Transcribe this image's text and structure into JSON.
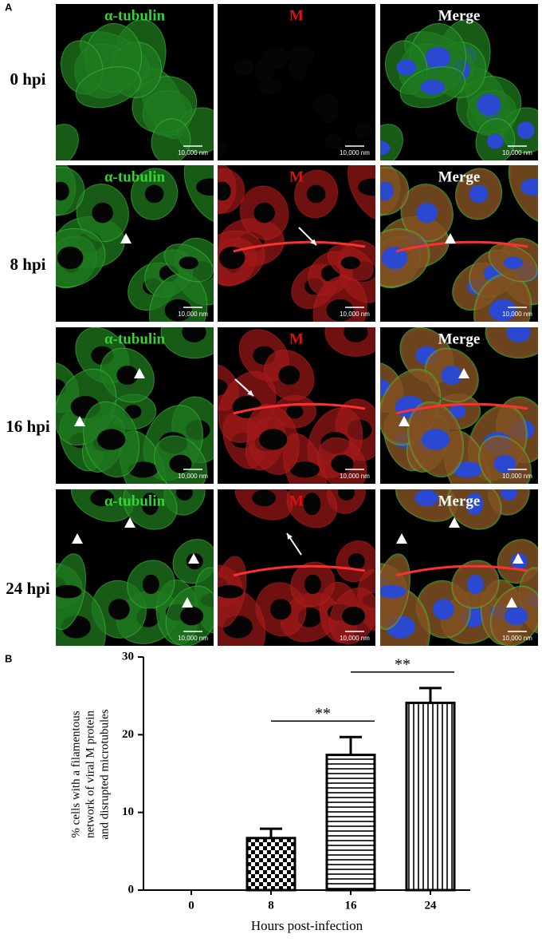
{
  "panel_a": {
    "label": "A",
    "rows": [
      {
        "label": "0 hpi",
        "panels": [
          {
            "title": "α-tubulin",
            "scale_bar": "10,000 nm"
          },
          {
            "title": "M",
            "scale_bar": "10,000 nm"
          },
          {
            "title": "Merge",
            "scale_bar": "10,000 nm"
          }
        ]
      },
      {
        "label": "8 hpi",
        "panels": [
          {
            "title": "α-tubulin",
            "scale_bar": "10,000 nm"
          },
          {
            "title": "M",
            "scale_bar": "10,000 nm"
          },
          {
            "title": "Merge",
            "scale_bar": "10,000 nm"
          }
        ]
      },
      {
        "label": "16 hpi",
        "panels": [
          {
            "title": "α-tubulin",
            "scale_bar": "10,000 nm"
          },
          {
            "title": "M",
            "scale_bar": "10,000 nm"
          },
          {
            "title": "Merge",
            "scale_bar": "10,000 nm"
          }
        ]
      },
      {
        "label": "24 hpi",
        "panels": [
          {
            "title": "α-tubulin",
            "scale_bar": "10,000 nm"
          },
          {
            "title": "M",
            "scale_bar": "10,000 nm"
          },
          {
            "title": "Merge",
            "scale_bar": "10,000 nm"
          }
        ]
      }
    ]
  },
  "chart_data": {
    "type": "bar",
    "panel_label": "B",
    "categories": [
      "0",
      "8",
      "16",
      "24"
    ],
    "values": [
      0,
      6.7,
      17.4,
      24.1
    ],
    "errors": [
      0,
      1.2,
      2.3,
      1.9
    ],
    "patterns": [
      "none",
      "checker",
      "horizontal",
      "vertical"
    ],
    "color": "#000000",
    "ylim": [
      0,
      30
    ],
    "yticks": [
      0,
      10,
      20,
      30
    ],
    "ylabel": [
      "% cells with a filamentous",
      "network of viral M protein",
      "and disrupted microtubules"
    ],
    "xlabel": "Hours post-infection",
    "annotations": [
      {
        "text": "**",
        "between": [
          "8",
          "16"
        ]
      },
      {
        "text": "**",
        "between": [
          "16",
          "24"
        ]
      }
    ]
  }
}
